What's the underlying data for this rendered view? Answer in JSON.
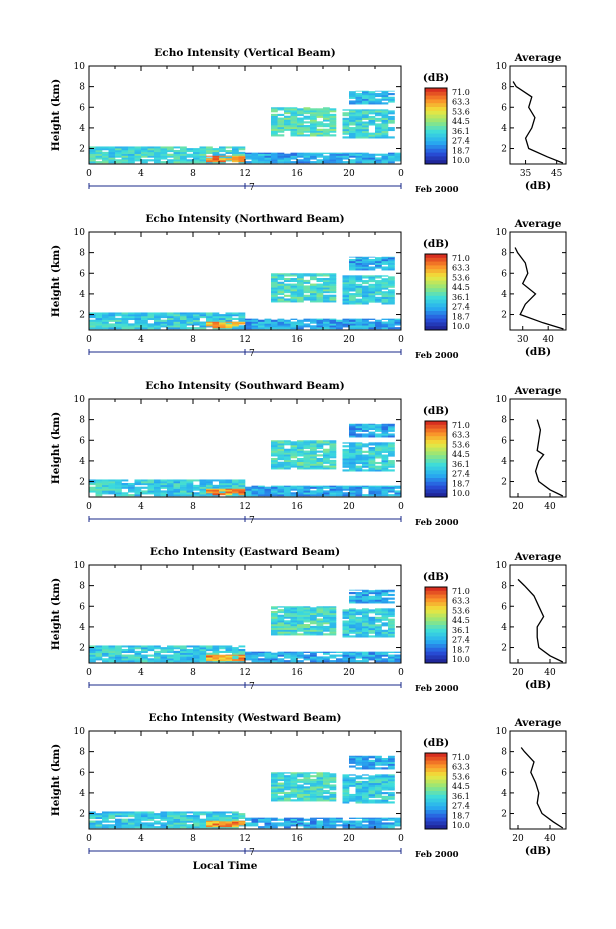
{
  "figure": {
    "date_label": "Feb 2000",
    "xlabel_bottom": "Local Time"
  },
  "chart_data": [
    {
      "type": "heatmap",
      "title": "Echo Intensity (Vertical Beam)",
      "xlabel": "",
      "ylabel": "Height (km)",
      "x_ticks": [
        "0",
        "4",
        "8",
        "12",
        "16",
        "20",
        "0"
      ],
      "y_ticks": [
        "2",
        "4",
        "6",
        "8",
        "10"
      ],
      "xlim": [
        0,
        24
      ],
      "ylim": [
        0.5,
        10
      ],
      "day_label": "7",
      "colorbar": {
        "unit": "(dB)",
        "ticks": [
          "71.0",
          "63.3",
          "53.6",
          "44.5",
          "36.1",
          "27.4",
          "18.7",
          "10.0"
        ],
        "range": [
          10.0,
          71.0
        ]
      },
      "regions": [
        {
          "x": [
            0,
            12
          ],
          "y": [
            0.6,
            2.2
          ],
          "dB": 35
        },
        {
          "x": [
            12,
            24
          ],
          "y": [
            0.6,
            1.6
          ],
          "dB": 28
        },
        {
          "x": [
            9,
            12
          ],
          "y": [
            0.7,
            1.3
          ],
          "dB": 62
        },
        {
          "x": [
            14,
            19
          ],
          "y": [
            3.2,
            6.0
          ],
          "dB": 38
        },
        {
          "x": [
            19.5,
            23.5
          ],
          "y": [
            3.0,
            5.8
          ],
          "dB": 35
        },
        {
          "x": [
            20,
            23.5
          ],
          "y": [
            6.3,
            7.6
          ],
          "dB": 30
        }
      ],
      "average": {
        "title": "Average",
        "xlabel": "(dB)",
        "x_ticks": [
          "35",
          "45"
        ],
        "xlim": [
          30,
          48
        ],
        "y_ticks": [
          "2",
          "4",
          "6",
          "8",
          "10"
        ],
        "profile": [
          [
            47,
            0.6
          ],
          [
            42,
            1.2
          ],
          [
            36,
            2
          ],
          [
            35,
            3
          ],
          [
            37,
            4
          ],
          [
            38,
            5
          ],
          [
            36,
            6
          ],
          [
            37,
            7
          ],
          [
            32,
            8
          ],
          [
            31,
            8.5
          ]
        ]
      }
    },
    {
      "type": "heatmap",
      "title": "Echo Intensity (Northward Beam)",
      "xlabel": "",
      "ylabel": "Height (km)",
      "x_ticks": [
        "0",
        "4",
        "8",
        "12",
        "16",
        "20",
        "0"
      ],
      "y_ticks": [
        "2",
        "4",
        "6",
        "8",
        "10"
      ],
      "xlim": [
        0,
        24
      ],
      "ylim": [
        0.5,
        10
      ],
      "day_label": "7",
      "colorbar": {
        "unit": "(dB)",
        "ticks": [
          "71.0",
          "63.3",
          "53.6",
          "44.5",
          "36.1",
          "27.4",
          "18.7",
          "10.0"
        ],
        "range": [
          10.0,
          71.0
        ]
      },
      "regions": [
        {
          "x": [
            0,
            12
          ],
          "y": [
            0.6,
            2.2
          ],
          "dB": 33
        },
        {
          "x": [
            12,
            24
          ],
          "y": [
            0.6,
            1.6
          ],
          "dB": 28
        },
        {
          "x": [
            9,
            12
          ],
          "y": [
            0.7,
            1.3
          ],
          "dB": 58
        },
        {
          "x": [
            14,
            19
          ],
          "y": [
            3.2,
            6.0
          ],
          "dB": 36
        },
        {
          "x": [
            19.5,
            23.5
          ],
          "y": [
            3.0,
            5.8
          ],
          "dB": 33
        },
        {
          "x": [
            20,
            23.5
          ],
          "y": [
            6.3,
            7.6
          ],
          "dB": 28
        }
      ],
      "average": {
        "title": "Average",
        "xlabel": "(dB)",
        "x_ticks": [
          "30",
          "40"
        ],
        "xlim": [
          25,
          47
        ],
        "y_ticks": [
          "2",
          "4",
          "6",
          "8",
          "10"
        ],
        "profile": [
          [
            46,
            0.6
          ],
          [
            38,
            1.2
          ],
          [
            29,
            2
          ],
          [
            31,
            3
          ],
          [
            35,
            4
          ],
          [
            30,
            5
          ],
          [
            32,
            6
          ],
          [
            31,
            7
          ],
          [
            28,
            8
          ],
          [
            27,
            8.5
          ]
        ]
      }
    },
    {
      "type": "heatmap",
      "title": "Echo Intensity (Southward Beam)",
      "xlabel": "",
      "ylabel": "Height (km)",
      "x_ticks": [
        "0",
        "4",
        "8",
        "12",
        "16",
        "20",
        "0"
      ],
      "y_ticks": [
        "2",
        "4",
        "6",
        "8",
        "10"
      ],
      "xlim": [
        0,
        24
      ],
      "ylim": [
        0.5,
        10
      ],
      "day_label": "7",
      "colorbar": {
        "unit": "(dB)",
        "ticks": [
          "71.0",
          "63.3",
          "53.6",
          "44.5",
          "36.1",
          "27.4",
          "18.7",
          "10.0"
        ],
        "range": [
          10.0,
          71.0
        ]
      },
      "regions": [
        {
          "x": [
            0,
            12
          ],
          "y": [
            0.6,
            2.2
          ],
          "dB": 33
        },
        {
          "x": [
            12,
            24
          ],
          "y": [
            0.6,
            1.6
          ],
          "dB": 28
        },
        {
          "x": [
            9,
            12
          ],
          "y": [
            0.7,
            1.3
          ],
          "dB": 60
        },
        {
          "x": [
            14,
            19
          ],
          "y": [
            3.2,
            6.0
          ],
          "dB": 36
        },
        {
          "x": [
            19.5,
            23.5
          ],
          "y": [
            3.0,
            5.8
          ],
          "dB": 33
        },
        {
          "x": [
            20,
            23.5
          ],
          "y": [
            6.3,
            7.6
          ],
          "dB": 28
        }
      ],
      "average": {
        "title": "Average",
        "xlabel": "",
        "x_ticks": [
          "20",
          "40"
        ],
        "xlim": [
          15,
          50
        ],
        "y_ticks": [
          "2",
          "4",
          "6",
          "8",
          "10"
        ],
        "profile": [
          [
            48,
            0.6
          ],
          [
            40,
            1.2
          ],
          [
            33,
            2
          ],
          [
            31,
            3
          ],
          [
            33,
            4
          ],
          [
            36,
            4.6
          ],
          [
            32,
            5
          ],
          [
            33,
            6
          ],
          [
            34,
            7
          ],
          [
            32,
            8
          ]
        ]
      }
    },
    {
      "type": "heatmap",
      "title": "Echo Intensity (Eastward Beam)",
      "xlabel": "",
      "ylabel": "Height (km)",
      "x_ticks": [
        "0",
        "4",
        "8",
        "12",
        "16",
        "20",
        "0"
      ],
      "y_ticks": [
        "2",
        "4",
        "6",
        "8",
        "10"
      ],
      "xlim": [
        0,
        24
      ],
      "ylim": [
        0.5,
        10
      ],
      "day_label": "7",
      "colorbar": {
        "unit": "(dB)",
        "ticks": [
          "71.0",
          "63.3",
          "53.6",
          "44.5",
          "36.1",
          "27.4",
          "18.7",
          "10.0"
        ],
        "range": [
          10.0,
          71.0
        ]
      },
      "regions": [
        {
          "x": [
            0,
            12
          ],
          "y": [
            0.6,
            2.2
          ],
          "dB": 33
        },
        {
          "x": [
            12,
            24
          ],
          "y": [
            0.6,
            1.6
          ],
          "dB": 28
        },
        {
          "x": [
            9,
            12
          ],
          "y": [
            0.7,
            1.3
          ],
          "dB": 60
        },
        {
          "x": [
            14,
            19
          ],
          "y": [
            3.2,
            6.0
          ],
          "dB": 36
        },
        {
          "x": [
            19.5,
            23.5
          ],
          "y": [
            3.0,
            5.8
          ],
          "dB": 33
        },
        {
          "x": [
            20,
            23.5
          ],
          "y": [
            6.3,
            7.6
          ],
          "dB": 28
        }
      ],
      "average": {
        "title": "Average",
        "xlabel": "(dB)",
        "x_ticks": [
          "20",
          "40"
        ],
        "xlim": [
          15,
          50
        ],
        "y_ticks": [
          "2",
          "4",
          "6",
          "8",
          "10"
        ],
        "profile": [
          [
            48,
            0.6
          ],
          [
            40,
            1.2
          ],
          [
            33,
            2
          ],
          [
            32,
            3
          ],
          [
            32,
            4
          ],
          [
            36,
            5
          ],
          [
            33,
            6
          ],
          [
            30,
            7
          ],
          [
            24,
            8
          ],
          [
            20,
            8.6
          ]
        ]
      }
    },
    {
      "type": "heatmap",
      "title": "Echo Intensity (Westward Beam)",
      "xlabel": "Local Time",
      "ylabel": "Height (km)",
      "x_ticks": [
        "0",
        "4",
        "8",
        "12",
        "16",
        "20",
        "0"
      ],
      "y_ticks": [
        "2",
        "4",
        "6",
        "8",
        "10"
      ],
      "xlim": [
        0,
        24
      ],
      "ylim": [
        0.5,
        10
      ],
      "day_label": "7",
      "colorbar": {
        "unit": "(dB)",
        "ticks": [
          "71.0",
          "63.3",
          "53.6",
          "44.5",
          "36.1",
          "27.4",
          "18.7",
          "10.0"
        ],
        "range": [
          10.0,
          71.0
        ]
      },
      "regions": [
        {
          "x": [
            0,
            12
          ],
          "y": [
            0.6,
            2.2
          ],
          "dB": 33
        },
        {
          "x": [
            12,
            24
          ],
          "y": [
            0.6,
            1.6
          ],
          "dB": 28
        },
        {
          "x": [
            9,
            12
          ],
          "y": [
            0.7,
            1.3
          ],
          "dB": 60
        },
        {
          "x": [
            14,
            19
          ],
          "y": [
            3.2,
            6.0
          ],
          "dB": 36
        },
        {
          "x": [
            19.5,
            23.5
          ],
          "y": [
            3.0,
            5.8
          ],
          "dB": 33
        },
        {
          "x": [
            20,
            23.5
          ],
          "y": [
            6.3,
            7.6
          ],
          "dB": 28
        }
      ],
      "average": {
        "title": "Average",
        "xlabel": "(dB)",
        "x_ticks": [
          "20",
          "40"
        ],
        "xlim": [
          15,
          50
        ],
        "y_ticks": [
          "2",
          "4",
          "6",
          "8",
          "10"
        ],
        "profile": [
          [
            48,
            0.6
          ],
          [
            42,
            1.2
          ],
          [
            35,
            2
          ],
          [
            32,
            3
          ],
          [
            33,
            4
          ],
          [
            31,
            5
          ],
          [
            28,
            6
          ],
          [
            30,
            7
          ],
          [
            24,
            8
          ],
          [
            22,
            8.4
          ]
        ]
      }
    }
  ]
}
